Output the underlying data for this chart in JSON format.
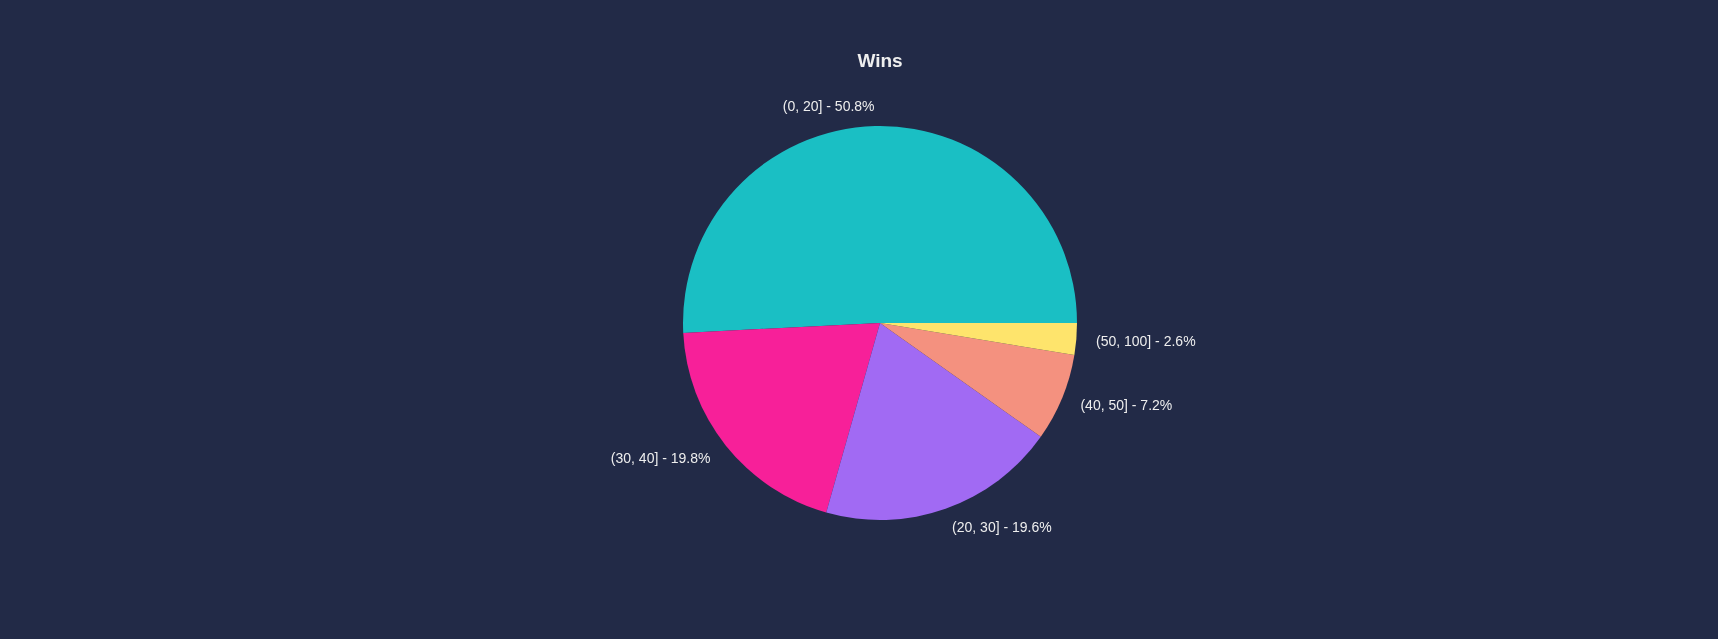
{
  "chart_data": {
    "type": "pie",
    "title": "Wins",
    "categories": [
      "(0, 20]",
      "(30, 40]",
      "(20, 30]",
      "(40, 50]",
      "(50, 100]"
    ],
    "values": [
      50.8,
      19.8,
      19.6,
      7.2,
      2.6
    ],
    "value_labels": [
      "50.8%",
      "19.8%",
      "19.6%",
      "7.2%",
      "2.6%"
    ],
    "colors": [
      "#1abfc4",
      "#f72099",
      "#a16af3",
      "#f4917f",
      "#fee46c"
    ]
  }
}
